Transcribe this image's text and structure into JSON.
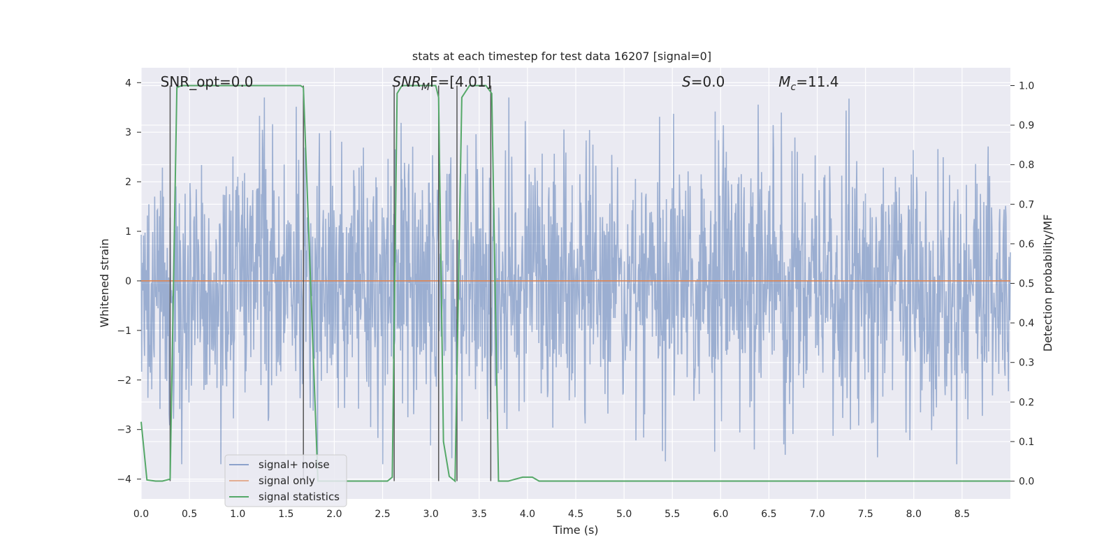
{
  "chart_data": {
    "type": "line",
    "title": "stats at each timestep for test data 16207 [signal=0]",
    "xlabel": "Time (s)",
    "ylabel": "Whitened strain",
    "ylabel_right": "Detection probability/MF",
    "xlim": [
      0,
      9.0
    ],
    "ylim": [
      -4.4,
      4.3
    ],
    "ylim_right": [
      -0.045,
      1.045
    ],
    "x_ticks": [
      "0.0",
      "0.5",
      "1.0",
      "1.5",
      "2.0",
      "2.5",
      "3.0",
      "3.5",
      "4.0",
      "4.5",
      "5.0",
      "5.5",
      "6.0",
      "6.5",
      "7.0",
      "7.5",
      "8.0",
      "8.5"
    ],
    "y_ticks_left": [
      "4",
      "3",
      "2",
      "1",
      "0",
      "−1",
      "−2",
      "−3",
      "−4"
    ],
    "y_ticks_right": [
      "1.0",
      "0.9",
      "0.8",
      "0.7",
      "0.6",
      "0.5",
      "0.4",
      "0.3",
      "0.2",
      "0.1",
      "0.0"
    ],
    "grid": true,
    "legend_position": "lower-left",
    "legend": [
      "signal+ noise",
      "signal only",
      "signal statistics"
    ],
    "annotations": [
      {
        "text": "SNR_opt=0.0",
        "x": 0.2
      },
      {
        "text": "SNR",
        "sub": "M",
        "after": "F=[4.01]",
        "italic_prefix": true,
        "x": 2.6
      },
      {
        "text": "S",
        "after": "=0.0",
        "italic_prefix": true,
        "x": 5.6
      },
      {
        "text": "M",
        "sub": "c",
        "after": "=11.4",
        "italic_prefix": true,
        "x": 6.6
      }
    ],
    "colors": {
      "noise": "#4c72b0",
      "signal": "#dd8452",
      "statistics": "#55a868",
      "markers": "#555555",
      "plot_bg": "#eaeaf2"
    },
    "series": [
      {
        "name": "signal+ noise",
        "description_type": "noise",
        "x_range": [
          0,
          9.0
        ],
        "samples": 1800,
        "envelope_typical": 2.3,
        "envelope_max": 3.7
      },
      {
        "name": "signal only",
        "x": [
          0,
          9.0
        ],
        "y": [
          0,
          0
        ]
      },
      {
        "name": "signal statistics",
        "axis": "right",
        "x": [
          0.0,
          0.06,
          0.15,
          0.22,
          0.3,
          0.37,
          0.42,
          1.65,
          1.68,
          1.83,
          2.0,
          2.55,
          2.6,
          2.65,
          2.7,
          3.05,
          3.08,
          3.13,
          3.19,
          3.25,
          3.32,
          3.4,
          3.57,
          3.63,
          3.7,
          3.8,
          3.95,
          4.05,
          4.12,
          4.25,
          9.0
        ],
        "y": [
          0.15,
          0.003,
          0.0,
          0.0,
          0.005,
          0.995,
          1.0,
          1.0,
          0.995,
          0.0,
          0.0,
          0.0,
          0.01,
          0.98,
          1.0,
          1.0,
          0.97,
          0.1,
          0.012,
          0.0,
          0.97,
          1.0,
          1.0,
          0.98,
          0.0,
          0.0,
          0.01,
          0.01,
          0.0,
          0.0,
          0.0
        ]
      }
    ],
    "markers_x": [
      0.3,
      1.68,
      2.62,
      3.08,
      3.27,
      3.62
    ]
  }
}
